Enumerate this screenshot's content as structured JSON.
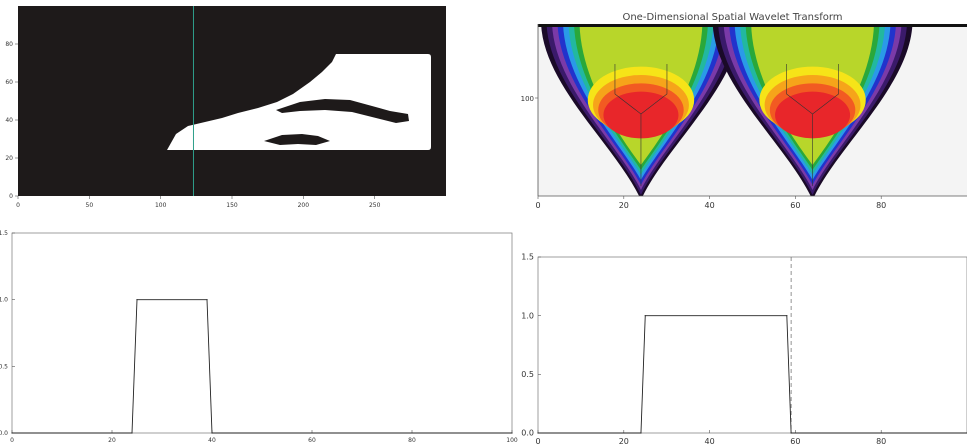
{
  "chart_data": [
    {
      "type": "image",
      "name": "binary-shape",
      "xlim": [
        0,
        300
      ],
      "ylim": [
        0,
        100
      ],
      "xticks": [
        0,
        50,
        100,
        150,
        200,
        250
      ],
      "yticks": [
        0,
        20,
        40,
        60,
        80
      ],
      "cursor_x": 123,
      "colors": {
        "background": "#1e1a1a",
        "shape": "#ffffff",
        "cursor": "#2e9e8a"
      }
    },
    {
      "type": "heatmap",
      "title": "One-Dimensional Spatial Wavelet Transform",
      "xlim": [
        0,
        100
      ],
      "xticks": [
        0,
        20,
        40,
        60,
        80
      ],
      "ytick_label": "100",
      "peaks_x": [
        24,
        64
      ],
      "colormap": [
        "#1a0a28",
        "#3a1a6a",
        "#7a3aa8",
        "#2233cc",
        "#2a9ae8",
        "#22b8a0",
        "#2aa83a",
        "#b8d62a",
        "#f6e418",
        "#f6a41a",
        "#f25a22",
        "#e8262a"
      ]
    },
    {
      "type": "line",
      "name": "profile-left",
      "xlim": [
        0,
        100
      ],
      "ylim": [
        0,
        1.5
      ],
      "xticks": [
        0,
        20,
        40,
        60,
        80,
        100
      ],
      "yticks": [
        0.0,
        0.5,
        1.0,
        1.5
      ],
      "ytick_labels": [
        "0.0",
        "0.5",
        "1.0",
        "1.5"
      ],
      "series": [
        {
          "x": [
            0,
            24,
            25,
            39,
            40,
            100
          ],
          "y": [
            0,
            0,
            1,
            1,
            0,
            0
          ]
        }
      ]
    },
    {
      "type": "line",
      "name": "profile-right",
      "xlim": [
        0,
        100
      ],
      "ylim": [
        0,
        1.5
      ],
      "xticks": [
        0,
        20,
        40,
        60,
        80
      ],
      "yticks": [
        0.0,
        0.5,
        1.0,
        1.5
      ],
      "ytick_labels": [
        "0.0",
        "0.5",
        "1.0",
        "1.5"
      ],
      "cursor_x": 59,
      "series": [
        {
          "x": [
            0,
            24,
            25,
            58,
            59,
            100
          ],
          "y": [
            0,
            0,
            1,
            1,
            0,
            0
          ]
        }
      ]
    }
  ]
}
